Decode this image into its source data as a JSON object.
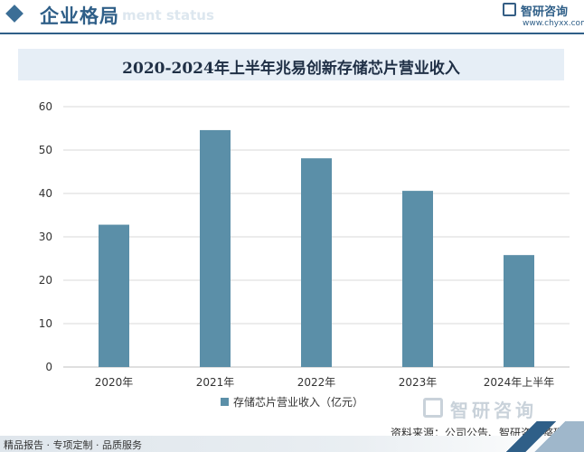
{
  "header": {
    "title": "企业格局",
    "title_en": "ment status",
    "brand": "智研咨询",
    "brand_url": "www.chyxx.com"
  },
  "chart_data": {
    "type": "bar",
    "title": "2020-2024年上半年兆易创新存储芯片营业收入",
    "categories": [
      "2020年",
      "2021年",
      "2022年",
      "2023年",
      "2024年上半年"
    ],
    "series": [
      {
        "name": "存储芯片营业收入（亿元）",
        "values": [
          32.8,
          54.6,
          48.1,
          40.6,
          25.8
        ]
      }
    ],
    "ylim": [
      0,
      60
    ],
    "yticks": [
      0,
      10,
      20,
      30,
      40,
      50,
      60
    ],
    "grid": true,
    "legend_position": "bottom",
    "colors": {
      "bar": "#5b8fa8",
      "grid": "#d9d9d9"
    }
  },
  "watermark": {
    "brand": "智研咨询"
  },
  "source": "资料来源：公司公告、智研咨询整理",
  "footer": {
    "text": "精品报告 · 专项定制 · 品质服务"
  }
}
